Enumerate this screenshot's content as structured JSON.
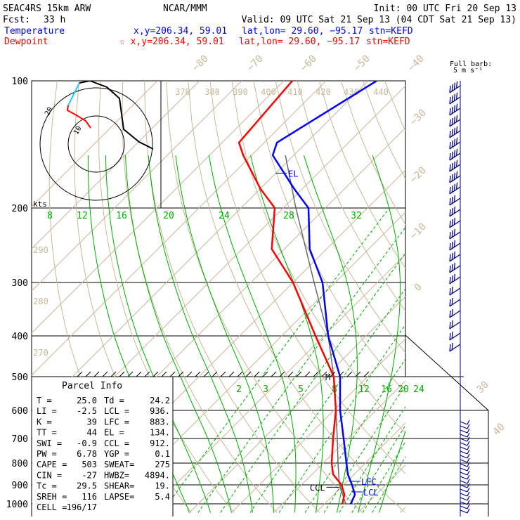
{
  "header": {
    "model": "SEAC4RS 15km ARW",
    "org": "NCAR/MMM",
    "init": "Init: 00 UTC Fri 20 Sep 13",
    "fcst_label": "Fcst:",
    "fcst_value": "33 h",
    "valid": "Valid: 09 UTC Sat 21 Sep 13 (04 CDT Sat 21 Sep 13)",
    "temp_label": "Temperature",
    "temp_info": "x,y=206.34, 59.01",
    "temp_latlon": "lat,lon= 29.60, −95.17",
    "temp_stn": "stn=KEFD",
    "dew_label": "Dewpoint",
    "dew_info": "☆ x,y=206.34, 59.01",
    "dew_latlon": "lat,lon= 29.60, −95.17",
    "dew_stn": "stn=KEFD"
  },
  "colors": {
    "temperature": "#0000ff",
    "dewpoint": "#ff0000",
    "parcel": "#6a6a6a",
    "mixing_ratio": "#00aa00",
    "theta": "#c8b89a",
    "isotherm": "#c8b89a",
    "grid": "#000000",
    "hodo_upper": "#22ccee",
    "hodo_lower": "#ff0000",
    "barbs": "#000080"
  },
  "chart_data": {
    "type": "line",
    "title": "",
    "ylabel": "",
    "xlabel": "",
    "pressure_levels": [
      "100",
      "200",
      "300",
      "400",
      "500",
      "600",
      "700",
      "800",
      "900",
      "1000"
    ],
    "isotherm_labels": [
      "−80",
      "−70",
      "−60",
      "−50",
      "−40",
      "−30",
      "−20",
      "−10",
      "0",
      "30",
      "40"
    ],
    "theta_labels": [
      "370",
      "380",
      "390",
      "400",
      "410",
      "420",
      "430",
      "440",
      "290",
      "280",
      "270"
    ],
    "mixing_ratio_labels_upper": [
      "8",
      "12",
      "16",
      "20",
      "24",
      "28",
      "32"
    ],
    "mixing_ratio_labels_lower": [
      "2",
      "3",
      "5",
      "8",
      "12",
      "16",
      "20",
      "24"
    ],
    "series": [
      {
        "name": "Temperature",
        "pressure": [
          1000,
          950,
          900,
          850,
          800,
          700,
          600,
          500,
          400,
          300,
          250,
          200,
          180,
          150,
          140,
          100
        ],
        "values": [
          26.2,
          25.0,
          22.0,
          18.5,
          15.5,
          9.0,
          1.5,
          -6.5,
          -19.0,
          -33.0,
          -44.0,
          -54.0,
          -62.0,
          -75.0,
          -77.0,
          -68.0
        ]
      },
      {
        "name": "Dewpoint",
        "pressure": [
          1000,
          950,
          900,
          850,
          800,
          700,
          600,
          500,
          400,
          300,
          250,
          200,
          180,
          150,
          140,
          100
        ],
        "values": [
          24.2,
          22.5,
          19.5,
          15.0,
          12.0,
          6.5,
          0.5,
          -8.0,
          -22.0,
          -40.0,
          -53.0,
          -62.0,
          -70.0,
          -82.0,
          -86.0,
          -88.0
        ]
      }
    ],
    "levels": {
      "EL": "EL",
      "LFC": "LFC",
      "CCL": "CCL",
      "LCL": "LCL",
      "M": "M"
    },
    "legend": "none"
  },
  "hodograph": {
    "label": "kts",
    "rings": [
      "10",
      "20"
    ]
  },
  "wind_barbs": {
    "title_line1": "Full barb:",
    "title_line2": "5 m s⁻¹"
  },
  "parcel": {
    "title": "Parcel Info",
    "rows": [
      [
        "T  =",
        "25.0",
        "Td =",
        "24.2"
      ],
      [
        "LI =",
        "-2.5",
        "LCL =",
        "936."
      ],
      [
        "K  =",
        "39",
        "LFC =",
        "883."
      ],
      [
        "TT =",
        "44",
        "EL  =",
        "134."
      ],
      [
        "SWI =",
        "-0.9",
        "CCL =",
        "912."
      ],
      [
        "PW =",
        "6.78",
        "YGP =",
        "0.1"
      ],
      [
        "CAPE =",
        "503",
        "SWEAT=",
        "275"
      ],
      [
        "CIN =",
        "-27",
        "HWBZ=",
        "4894."
      ],
      [
        "Tc =",
        "29.5",
        "SHEAR=",
        "19."
      ],
      [
        "SREH =",
        "116",
        "LAPSE=",
        "5.4"
      ],
      [
        "CELL =",
        "196/17",
        "",
        ""
      ]
    ]
  }
}
